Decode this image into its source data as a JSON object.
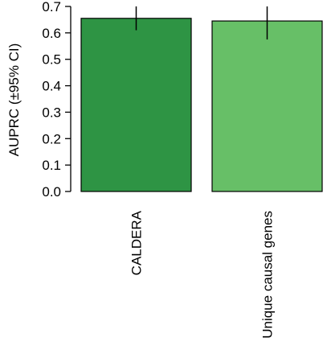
{
  "chart_data": {
    "type": "bar",
    "title": "",
    "xlabel": "",
    "ylabel": "AUPRC (±95% CI)",
    "ylim": [
      0,
      0.7
    ],
    "yticks": [
      0.0,
      0.1,
      0.2,
      0.3,
      0.4,
      0.5,
      0.6,
      0.7
    ],
    "ytick_labels": [
      "0.0",
      "0.1",
      "0.2",
      "0.3",
      "0.4",
      "0.5",
      "0.6",
      "0.7"
    ],
    "categories": [
      "CALDERA",
      "Unique causal genes"
    ],
    "values": [
      0.655,
      0.645
    ],
    "ci_low": [
      0.61,
      0.575
    ],
    "ci_high": [
      0.7,
      0.7
    ],
    "colors": [
      "#2e9444",
      "#67bf67"
    ],
    "grid": false,
    "legend": "none"
  }
}
